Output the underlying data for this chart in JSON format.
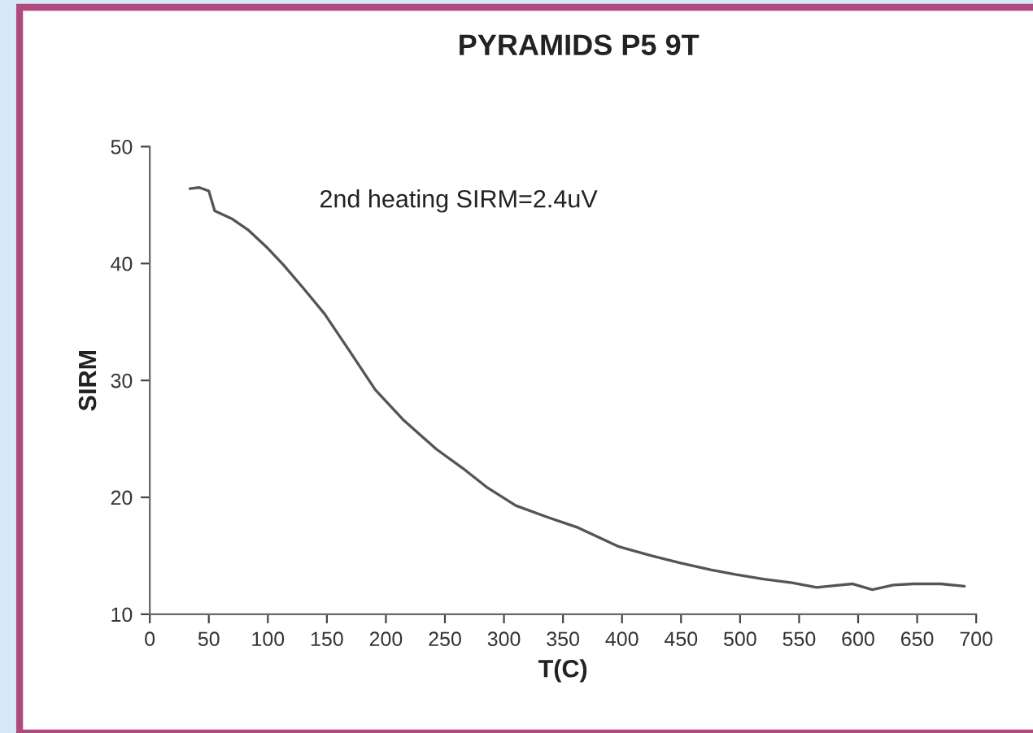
{
  "chart_data": {
    "type": "line",
    "title": "PYRAMIDS P5 9T",
    "xlabel": "T(C)",
    "ylabel": "SIRM",
    "annotations": [
      "2nd heating SIRM=2.4uV"
    ],
    "series": [
      {
        "color": "#555555",
        "x": [
          34,
          42,
          50,
          55,
          70,
          83,
          100,
          113,
          130,
          148,
          170,
          191,
          215,
          243,
          265,
          285,
          310,
          337,
          363,
          397,
          425,
          449,
          475,
          496,
          520,
          544,
          565,
          595,
          612,
          630,
          647,
          670,
          690
        ],
        "values": [
          46.4,
          46.5,
          46.2,
          44.5,
          43.8,
          42.9,
          41.3,
          39.9,
          37.9,
          35.7,
          32.4,
          29.2,
          26.6,
          24.1,
          22.5,
          20.9,
          19.3,
          18.3,
          17.4,
          15.8,
          15.0,
          14.4,
          13.8,
          13.4,
          13.0,
          12.7,
          12.3,
          12.6,
          12.1,
          12.5,
          12.6,
          12.6,
          12.4
        ]
      }
    ],
    "xlim": [
      0,
      700
    ],
    "xticks": [
      0,
      50,
      100,
      150,
      200,
      250,
      300,
      350,
      400,
      450,
      500,
      550,
      600,
      650,
      700
    ],
    "ylim": [
      10,
      50
    ],
    "yticks": [
      10,
      20,
      30,
      40,
      50
    ],
    "grid": false,
    "legend": false,
    "marker": "none",
    "line_style": "solid"
  }
}
